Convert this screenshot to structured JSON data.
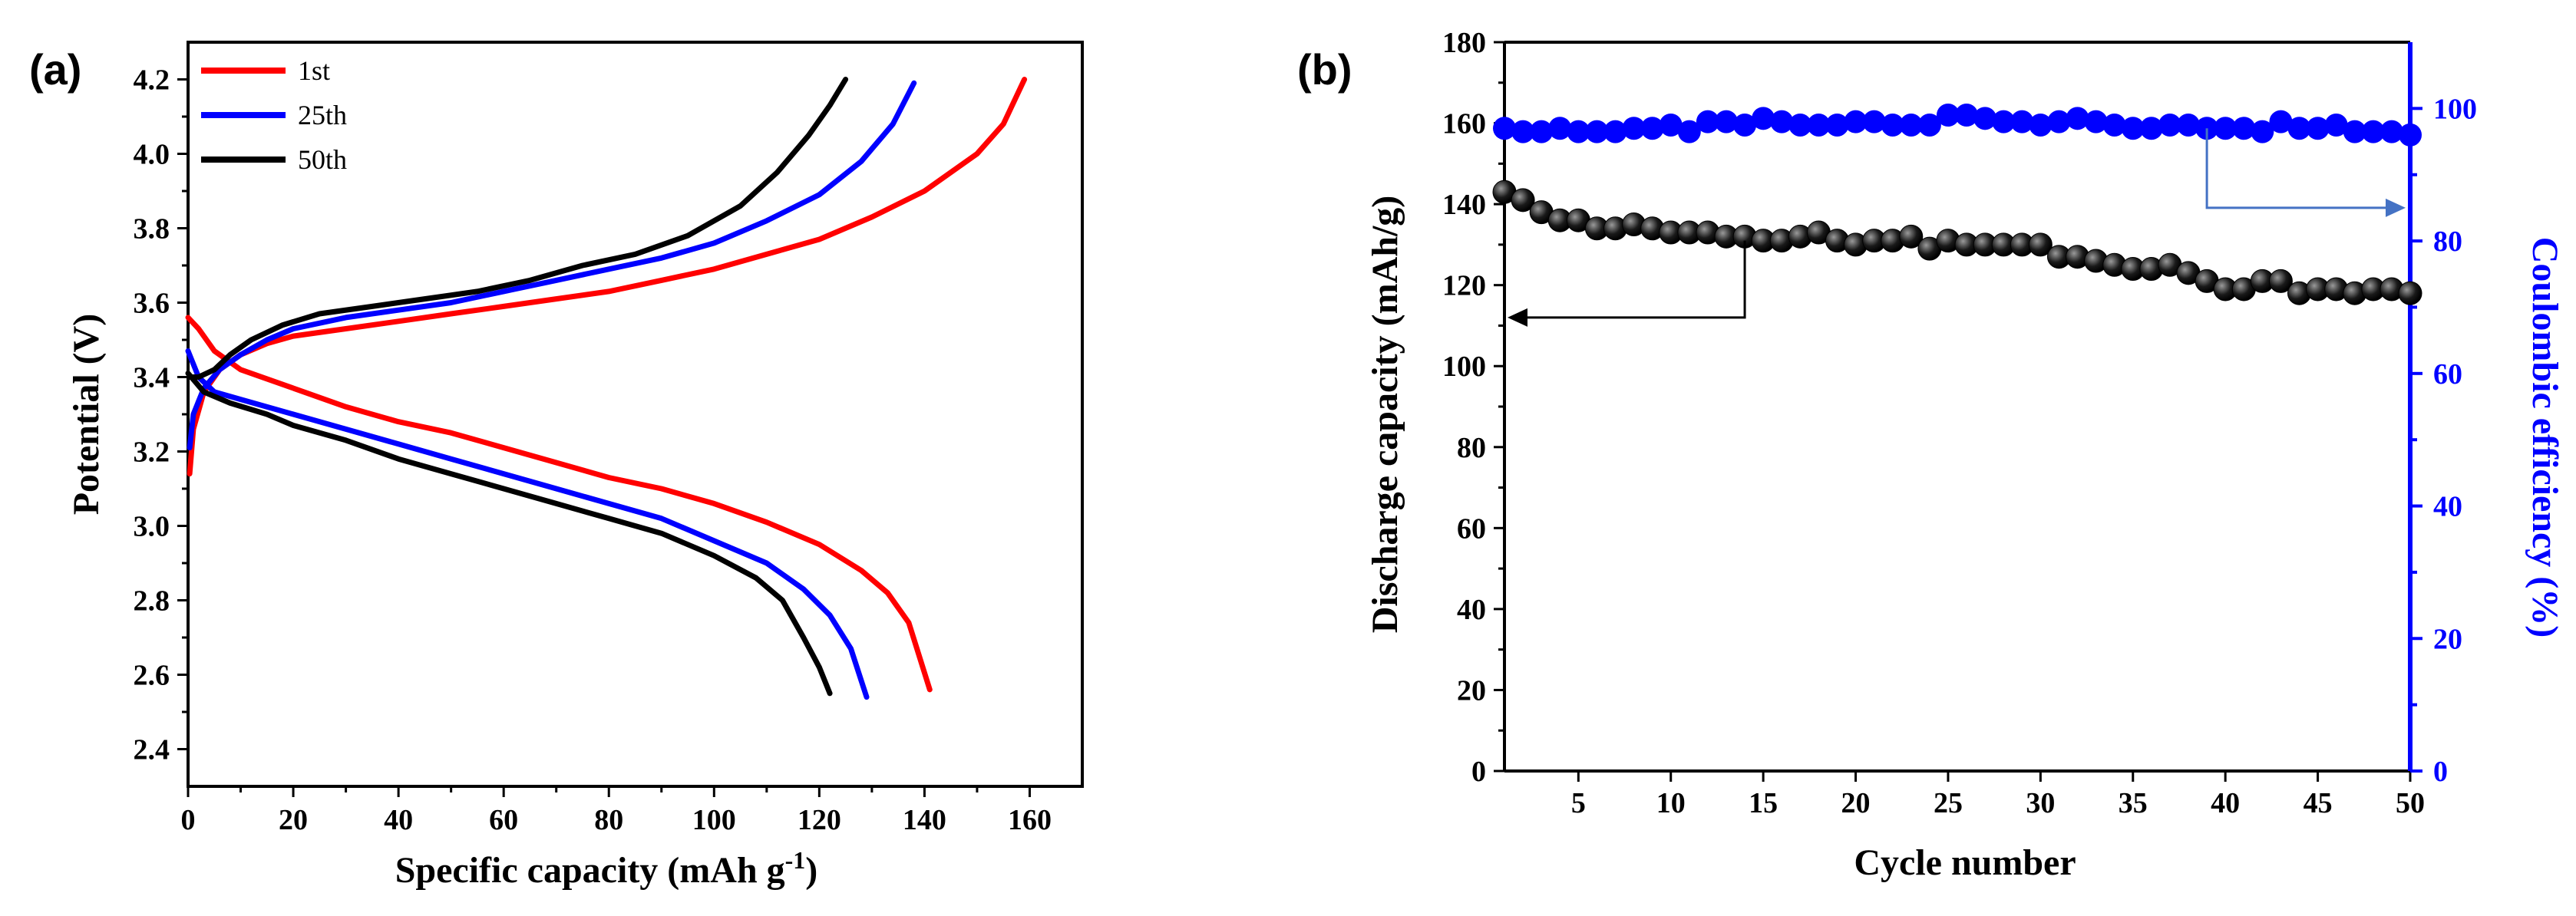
{
  "chart_data": [
    {
      "panel": "(a)",
      "type": "line",
      "xlabel": "Specific capacity (mAh g",
      "xlabel_sup": "-1",
      "xlabel_close": ")",
      "ylabel": "Potential (V)",
      "xlim": [
        0,
        170
      ],
      "ylim": [
        2.3,
        4.3
      ],
      "xticks": [
        0,
        20,
        40,
        60,
        80,
        100,
        120,
        140,
        160
      ],
      "yticks": [
        2.4,
        2.6,
        2.8,
        3.0,
        3.2,
        3.4,
        3.6,
        3.8,
        4.0,
        4.2
      ],
      "legend_position": "top-left",
      "series": [
        {
          "name": "1st",
          "color": "#ff0000",
          "charge": [
            [
              0.3,
              3.14
            ],
            [
              1,
              3.26
            ],
            [
              3,
              3.36
            ],
            [
              6,
              3.42
            ],
            [
              10,
              3.46
            ],
            [
              15,
              3.49
            ],
            [
              20,
              3.51
            ],
            [
              30,
              3.53
            ],
            [
              40,
              3.55
            ],
            [
              50,
              3.57
            ],
            [
              60,
              3.59
            ],
            [
              70,
              3.61
            ],
            [
              80,
              3.63
            ],
            [
              90,
              3.66
            ],
            [
              100,
              3.69
            ],
            [
              110,
              3.73
            ],
            [
              120,
              3.77
            ],
            [
              130,
              3.83
            ],
            [
              140,
              3.9
            ],
            [
              150,
              4.0
            ],
            [
              155,
              4.08
            ],
            [
              159,
              4.2
            ]
          ],
          "discharge": [
            [
              0,
              3.56
            ],
            [
              2,
              3.53
            ],
            [
              5,
              3.47
            ],
            [
              10,
              3.42
            ],
            [
              20,
              3.37
            ],
            [
              30,
              3.32
            ],
            [
              40,
              3.28
            ],
            [
              50,
              3.25
            ],
            [
              60,
              3.21
            ],
            [
              70,
              3.17
            ],
            [
              80,
              3.13
            ],
            [
              90,
              3.1
            ],
            [
              100,
              3.06
            ],
            [
              110,
              3.01
            ],
            [
              120,
              2.95
            ],
            [
              128,
              2.88
            ],
            [
              133,
              2.82
            ],
            [
              137,
              2.74
            ],
            [
              141,
              2.56
            ]
          ]
        },
        {
          "name": "25th",
          "color": "#0000ff",
          "charge": [
            [
              0.3,
              3.21
            ],
            [
              1,
              3.3
            ],
            [
              3,
              3.37
            ],
            [
              6,
              3.42
            ],
            [
              10,
              3.46
            ],
            [
              15,
              3.5
            ],
            [
              20,
              3.53
            ],
            [
              30,
              3.56
            ],
            [
              40,
              3.58
            ],
            [
              50,
              3.6
            ],
            [
              60,
              3.63
            ],
            [
              70,
              3.66
            ],
            [
              80,
              3.69
            ],
            [
              90,
              3.72
            ],
            [
              100,
              3.76
            ],
            [
              110,
              3.82
            ],
            [
              120,
              3.89
            ],
            [
              128,
              3.98
            ],
            [
              134,
              4.08
            ],
            [
              138,
              4.19
            ]
          ],
          "discharge": [
            [
              0,
              3.47
            ],
            [
              2,
              3.4
            ],
            [
              5,
              3.36
            ],
            [
              10,
              3.34
            ],
            [
              20,
              3.3
            ],
            [
              30,
              3.26
            ],
            [
              40,
              3.22
            ],
            [
              50,
              3.18
            ],
            [
              60,
              3.14
            ],
            [
              70,
              3.1
            ],
            [
              80,
              3.06
            ],
            [
              90,
              3.02
            ],
            [
              100,
              2.96
            ],
            [
              110,
              2.9
            ],
            [
              117,
              2.83
            ],
            [
              122,
              2.76
            ],
            [
              126,
              2.67
            ],
            [
              129,
              2.54
            ]
          ]
        },
        {
          "name": "50th",
          "color": "#000000",
          "charge": [
            [
              0.3,
              3.4
            ],
            [
              2,
              3.4
            ],
            [
              5,
              3.42
            ],
            [
              8,
              3.46
            ],
            [
              12,
              3.5
            ],
            [
              18,
              3.54
            ],
            [
              25,
              3.57
            ],
            [
              35,
              3.59
            ],
            [
              45,
              3.61
            ],
            [
              55,
              3.63
            ],
            [
              65,
              3.66
            ],
            [
              75,
              3.7
            ],
            [
              85,
              3.73
            ],
            [
              95,
              3.78
            ],
            [
              105,
              3.86
            ],
            [
              112,
              3.95
            ],
            [
              118,
              4.05
            ],
            [
              122,
              4.13
            ],
            [
              125,
              4.2
            ]
          ],
          "discharge": [
            [
              0,
              3.41
            ],
            [
              3,
              3.36
            ],
            [
              8,
              3.33
            ],
            [
              15,
              3.3
            ],
            [
              20,
              3.27
            ],
            [
              30,
              3.23
            ],
            [
              40,
              3.18
            ],
            [
              50,
              3.14
            ],
            [
              60,
              3.1
            ],
            [
              70,
              3.06
            ],
            [
              80,
              3.02
            ],
            [
              90,
              2.98
            ],
            [
              100,
              2.92
            ],
            [
              108,
              2.86
            ],
            [
              113,
              2.8
            ],
            [
              117,
              2.7
            ],
            [
              120,
              2.62
            ],
            [
              122,
              2.55
            ]
          ]
        }
      ]
    },
    {
      "panel": "(b)",
      "type": "scatter",
      "xlabel": "Cycle number",
      "ylabel_left": "Discharge capacity (mAh/g)",
      "ylabel_right": "Coulombic efficiency (%)",
      "xlim": [
        1,
        50
      ],
      "ylim_left": [
        0,
        180
      ],
      "ylim_right": [
        0,
        110
      ],
      "xticks": [
        5,
        10,
        15,
        20,
        25,
        30,
        35,
        40,
        45,
        50
      ],
      "yticks_left": [
        0,
        20,
        40,
        60,
        80,
        100,
        120,
        140,
        160,
        180
      ],
      "yticks_right": [
        0,
        20,
        40,
        60,
        80,
        100
      ],
      "right_axis_color": "#0000ff",
      "series": [
        {
          "name": "Discharge capacity",
          "axis": "left",
          "color": "#000000",
          "x": [
            1,
            2,
            3,
            4,
            5,
            6,
            7,
            8,
            9,
            10,
            11,
            12,
            13,
            14,
            15,
            16,
            17,
            18,
            19,
            20,
            21,
            22,
            23,
            24,
            25,
            26,
            27,
            28,
            29,
            30,
            31,
            32,
            33,
            34,
            35,
            36,
            37,
            38,
            39,
            40,
            41,
            42,
            43,
            44,
            45,
            46,
            47,
            48,
            49,
            50
          ],
          "values": [
            143,
            141,
            138,
            136,
            136,
            134,
            134,
            135,
            134,
            133,
            133,
            133,
            132,
            132,
            131,
            131,
            132,
            133,
            131,
            130,
            131,
            131,
            132,
            129,
            131,
            130,
            130,
            130,
            130,
            130,
            127,
            127,
            126,
            125,
            124,
            124,
            125,
            123,
            121,
            119,
            119,
            121,
            121,
            118,
            119,
            119,
            118,
            119,
            119,
            118
          ]
        },
        {
          "name": "Coulombic efficiency",
          "axis": "right",
          "color": "#0000ff",
          "x": [
            1,
            2,
            3,
            4,
            5,
            6,
            7,
            8,
            9,
            10,
            11,
            12,
            13,
            14,
            15,
            16,
            17,
            18,
            19,
            20,
            21,
            22,
            23,
            24,
            25,
            26,
            27,
            28,
            29,
            30,
            31,
            32,
            33,
            34,
            35,
            36,
            37,
            38,
            39,
            40,
            41,
            42,
            43,
            44,
            45,
            46,
            47,
            48,
            49,
            50
          ],
          "values": [
            97,
            96.5,
            96.5,
            97,
            96.5,
            96.5,
            96.5,
            97,
            97,
            97.5,
            96.5,
            98,
            98,
            97.5,
            98.5,
            98,
            97.5,
            97.5,
            97.5,
            98,
            98,
            97.5,
            97.5,
            97.5,
            99,
            99,
            98.5,
            98,
            98,
            97.5,
            98,
            98.5,
            98,
            97.5,
            97,
            97,
            97.5,
            97.5,
            97,
            97,
            97,
            96.5,
            98,
            97,
            97,
            97.5,
            96.5,
            96.5,
            96.5,
            96
          ]
        }
      ]
    }
  ]
}
